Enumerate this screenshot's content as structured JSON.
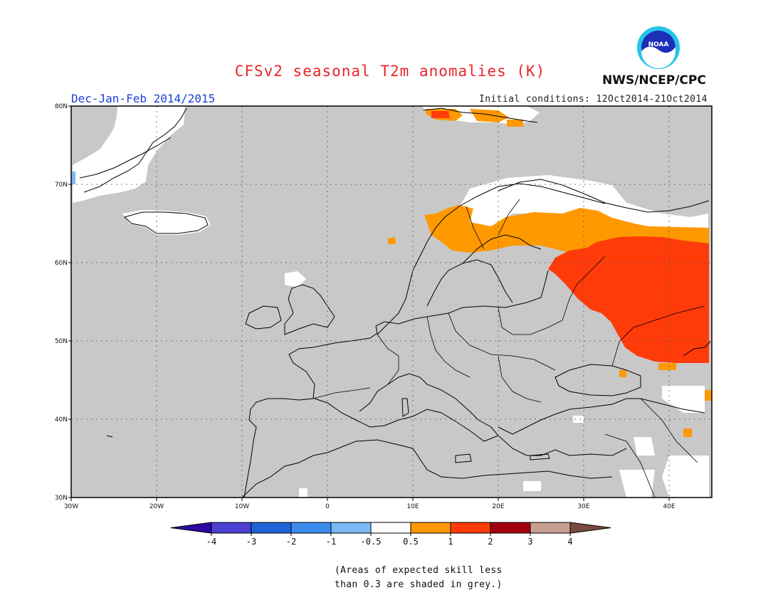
{
  "title": "CFSv2 seasonal T2m anomalies (K)",
  "agency": "NWS/NCEP/CPC",
  "logo_text": "NOAA",
  "season": "Dec-Jan-Feb 2014/2015",
  "initial_conditions": "Initial conditions: 12Oct2014-21Oct2014",
  "map": {
    "region": "Europe",
    "lon_range": [
      -30,
      45
    ],
    "lat_range": [
      30,
      80
    ],
    "lon_ticks": [
      {
        "value": -30,
        "label": "30W"
      },
      {
        "value": -20,
        "label": "20W"
      },
      {
        "value": -10,
        "label": "10W"
      },
      {
        "value": 0,
        "label": "0"
      },
      {
        "value": 10,
        "label": "10E"
      },
      {
        "value": 20,
        "label": "20E"
      },
      {
        "value": 30,
        "label": "30E"
      },
      {
        "value": 40,
        "label": "40E"
      }
    ],
    "lat_ticks": [
      {
        "value": 30,
        "label": "30N"
      },
      {
        "value": 40,
        "label": "40N"
      },
      {
        "value": 50,
        "label": "50N"
      },
      {
        "value": 60,
        "label": "60N"
      },
      {
        "value": 70,
        "label": "70N"
      },
      {
        "value": 80,
        "label": "80N"
      }
    ],
    "grid": true,
    "background_color": "#c8c8c8"
  },
  "colorbar": {
    "boundaries": [
      "-4",
      "-3",
      "-2",
      "-1",
      "-0.5",
      "0.5",
      "1",
      "2",
      "3",
      "4"
    ],
    "colors": [
      "#2a0aa0",
      "#4a3fd0",
      "#1f63d6",
      "#3c8cf0",
      "#7ab8f5",
      "#ffffff",
      "#ff9900",
      "#ff3b0a",
      "#a3000e",
      "#c8a092",
      "#7a4a40"
    ]
  },
  "skill_note": {
    "line1": "(Areas of expected skill less",
    "line2": "than 0.3 are shaded in grey.)"
  }
}
